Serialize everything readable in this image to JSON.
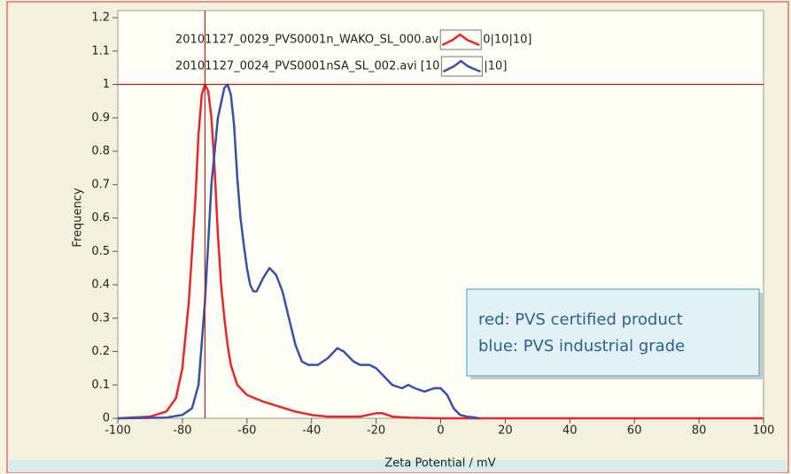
{
  "chart_data": {
    "type": "line",
    "x_label": "Zeta Potential / mV",
    "y_label": "Frequency",
    "xlim": [
      -100,
      100
    ],
    "xticks": [
      -100,
      -80,
      -60,
      -40,
      -20,
      0,
      20,
      40,
      60,
      80,
      100
    ],
    "ylim": [
      0,
      1.2
    ],
    "yticks": [
      0,
      0.1,
      0.2,
      0.3,
      0.4,
      0.5,
      0.6,
      0.7,
      0.8,
      0.9,
      1,
      1.1,
      1.2
    ],
    "cursor": {
      "x": -73,
      "y": 1,
      "color": "#b02020"
    },
    "annotation": [
      "red: PVS certified product",
      "blue: PVS industrial grade"
    ],
    "series": [
      {
        "name": "20101127_0029_PVS0001n_WAKO_SL_000.av",
        "legend_tail": "0|10|10]",
        "color": "#e8262b",
        "x": [
          -100,
          -90,
          -85,
          -82,
          -80,
          -78,
          -76,
          -75,
          -74,
          -73,
          -72,
          -71,
          -70,
          -69,
          -68,
          -67,
          -66,
          -65,
          -63,
          -60,
          -55,
          -50,
          -45,
          -40,
          -35,
          -30,
          -25,
          -20,
          -18,
          -15,
          -10,
          0,
          20,
          100
        ],
        "values": [
          0,
          0.005,
          0.02,
          0.06,
          0.15,
          0.35,
          0.65,
          0.85,
          0.97,
          1.0,
          0.98,
          0.9,
          0.75,
          0.55,
          0.4,
          0.3,
          0.22,
          0.16,
          0.1,
          0.07,
          0.05,
          0.035,
          0.02,
          0.01,
          0.005,
          0.005,
          0.005,
          0.015,
          0.015,
          0.005,
          0.002,
          0,
          0,
          0
        ]
      },
      {
        "name": "20101127_0024_PVS0001nSA_SL_002.avi [10",
        "legend_tail": "|10]",
        "color": "#3a4fa8",
        "x": [
          -100,
          -85,
          -80,
          -77,
          -75,
          -73,
          -71,
          -69,
          -67,
          -66,
          -65,
          -64,
          -63,
          -62,
          -61,
          -60,
          -59,
          -58,
          -57,
          -55,
          -53,
          -51,
          -49,
          -47,
          -45,
          -43,
          -41,
          -38,
          -35,
          -32,
          -30,
          -27,
          -25,
          -22,
          -20,
          -18,
          -15,
          -12,
          -10,
          -8,
          -5,
          -2,
          0,
          2,
          4,
          6,
          8,
          10,
          12
        ],
        "values": [
          0,
          0.002,
          0.01,
          0.03,
          0.1,
          0.35,
          0.7,
          0.9,
          0.99,
          1.0,
          0.97,
          0.88,
          0.72,
          0.6,
          0.52,
          0.45,
          0.4,
          0.38,
          0.38,
          0.42,
          0.45,
          0.43,
          0.38,
          0.3,
          0.22,
          0.17,
          0.16,
          0.16,
          0.18,
          0.21,
          0.2,
          0.17,
          0.16,
          0.16,
          0.15,
          0.13,
          0.1,
          0.09,
          0.1,
          0.09,
          0.08,
          0.09,
          0.09,
          0.07,
          0.03,
          0.01,
          0.005,
          0.003,
          0
        ]
      }
    ]
  }
}
